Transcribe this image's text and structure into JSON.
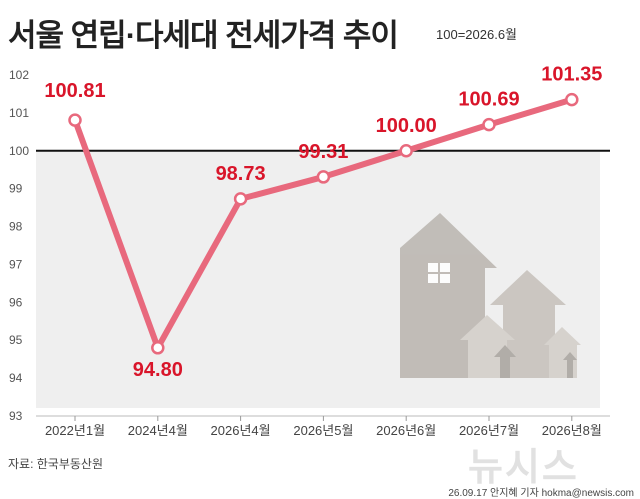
{
  "header": {
    "title": "서울 연립·다세대 전세가격 추이",
    "subtitle": "100=2026.6월"
  },
  "footer": {
    "source": "자료: 한국부동산원",
    "credit": "26.09.17  안지혜 기자 hokma@newsis.com",
    "watermark": "뉴시스"
  },
  "colors": {
    "line": "#e8697d",
    "label": "#d9152a",
    "background_band": "#efefef",
    "baseline": "#111111",
    "house": "#b9b4ae"
  },
  "chart_data": {
    "type": "line",
    "title": "서울 연립·다세대 전세가격 추이",
    "categories": [
      "2022년1월",
      "2024년4월",
      "2026년4월",
      "2026년5월",
      "2026년6월",
      "2026년7월",
      "2026년8월"
    ],
    "values": [
      100.81,
      94.8,
      98.73,
      99.31,
      100.0,
      100.69,
      101.35
    ],
    "value_labels": [
      "100.81",
      "94.80",
      "98.73",
      "99.31",
      "100.00",
      "100.69",
      "101.35"
    ],
    "ylim": [
      93,
      102
    ],
    "yticks": [
      "93",
      "94",
      "95",
      "96",
      "97",
      "98",
      "99",
      "100",
      "101",
      "102"
    ],
    "reference_line": 100,
    "grid": false,
    "xlabel": "",
    "ylabel": ""
  }
}
